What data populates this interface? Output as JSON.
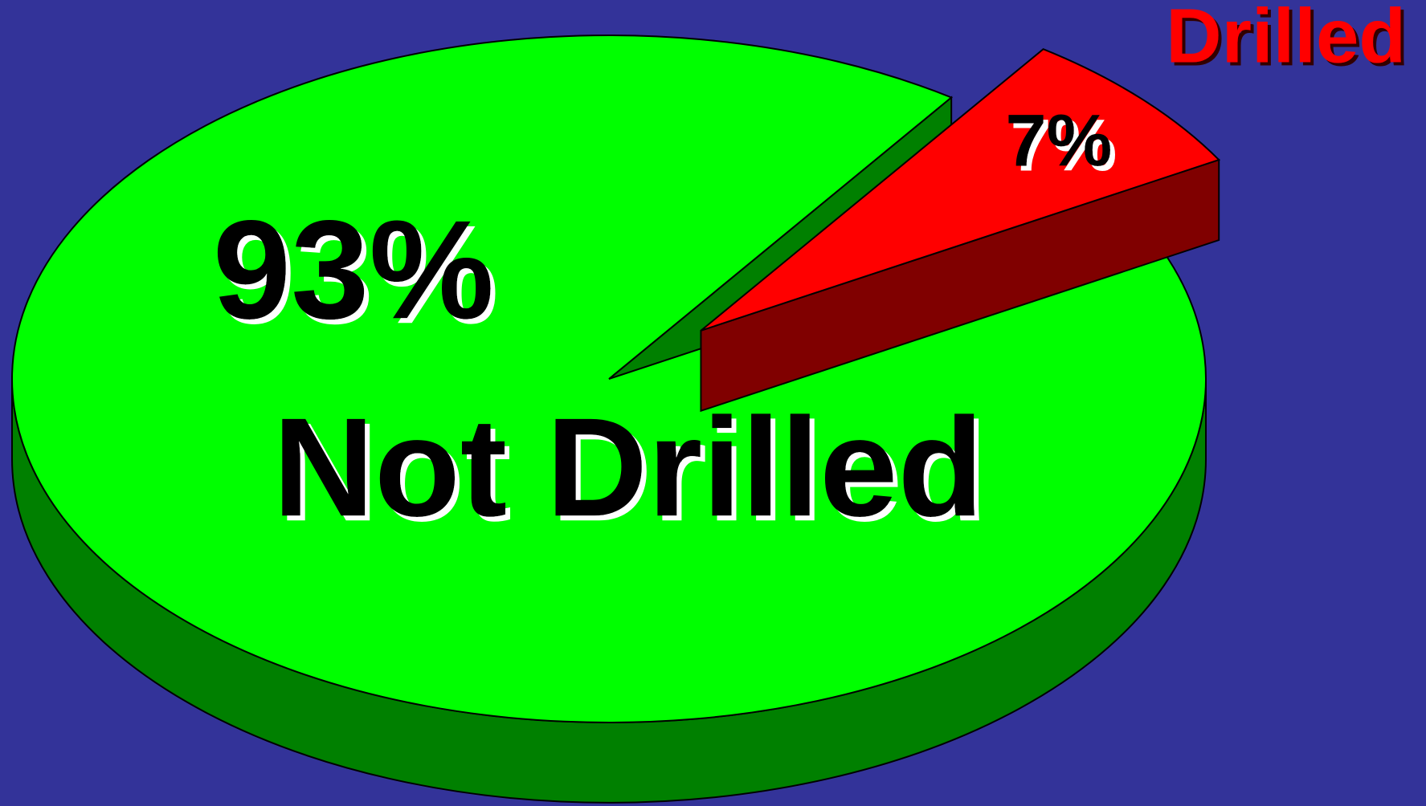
{
  "chart_data": {
    "type": "pie",
    "categories": [
      "Not Drilled",
      "Drilled"
    ],
    "values": [
      93,
      7
    ],
    "value_labels": [
      "93%",
      "7%"
    ],
    "colors": [
      "#00ff00",
      "#ff0000"
    ]
  }
}
